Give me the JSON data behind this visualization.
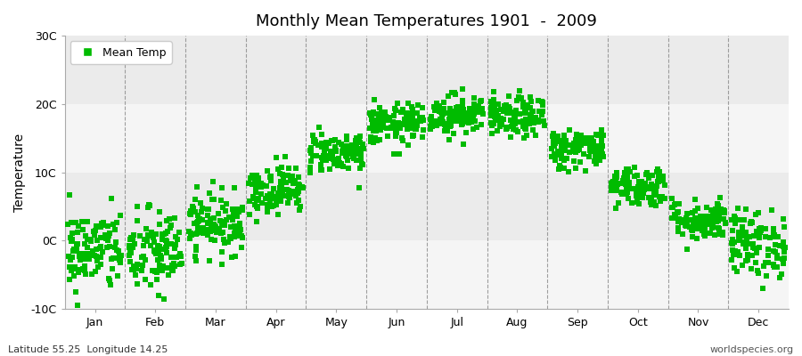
{
  "title": "Monthly Mean Temperatures 1901  -  2009",
  "ylabel": "Temperature",
  "xlabel_bottom_left": "Latitude 55.25  Longitude 14.25",
  "xlabel_bottom_right": "worldspecies.org",
  "ylim": [
    -10,
    30
  ],
  "yticks": [
    -10,
    0,
    10,
    20,
    30
  ],
  "ytick_labels": [
    "-10C",
    "0C",
    "10C",
    "20C",
    "30C"
  ],
  "months": [
    "Jan",
    "Feb",
    "Mar",
    "Apr",
    "May",
    "Jun",
    "Jul",
    "Aug",
    "Sep",
    "Oct",
    "Nov",
    "Dec"
  ],
  "monthly_means": [
    -1.5,
    -1.8,
    2.5,
    7.5,
    13.0,
    17.0,
    18.5,
    18.0,
    13.5,
    8.0,
    3.0,
    -0.5
  ],
  "monthly_stds": [
    3.0,
    3.2,
    2.2,
    1.8,
    1.5,
    1.5,
    1.5,
    1.5,
    1.5,
    1.5,
    1.5,
    2.5
  ],
  "n_years": 109,
  "dot_color": "#00bb00",
  "dot_size": 18,
  "background_color": "#ffffff",
  "plot_bg_color": "#ffffff",
  "band_color_1": "#ebebeb",
  "band_color_2": "#f5f5f5",
  "legend_label": "Mean Temp",
  "seed": 42,
  "dashed_line_color": "#888888",
  "spine_color": "#aaaaaa"
}
